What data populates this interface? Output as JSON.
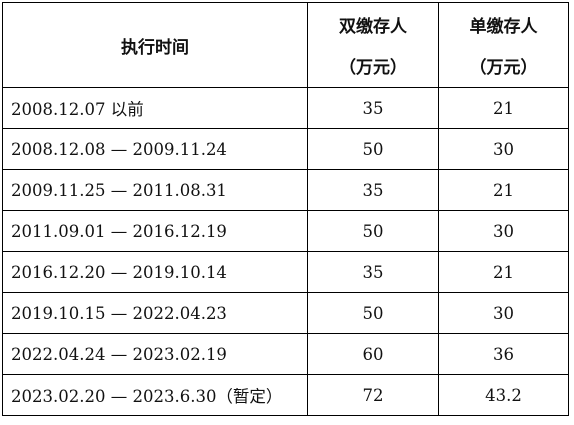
{
  "headers": {
    "period": "执行时间",
    "dual_line1": "双缴存人",
    "dual_line2": "（万元）",
    "single_line1": "单缴存人",
    "single_line2": "（万元）"
  },
  "rows": [
    {
      "period": "2008.12.07  以前",
      "dual": "35",
      "single": "21"
    },
    {
      "period": "2008.12.08 — 2009.11.24",
      "dual": "50",
      "single": "30"
    },
    {
      "period": "2009.11.25 — 2011.08.31",
      "dual": "35",
      "single": "21"
    },
    {
      "period": "2011.09.01 — 2016.12.19",
      "dual": "50",
      "single": "30"
    },
    {
      "period": "2016.12.20 — 2019.10.14",
      "dual": "35",
      "single": "21"
    },
    {
      "period": "2019.10.15 — 2022.04.23",
      "dual": "50",
      "single": "30"
    },
    {
      "period": "2022.04.24 — 2023.02.19",
      "dual": "60",
      "single": "36"
    },
    {
      "period": "2023.02.20 — 2023.6.30（暂定）",
      "dual": "72",
      "single": "43.2"
    }
  ]
}
